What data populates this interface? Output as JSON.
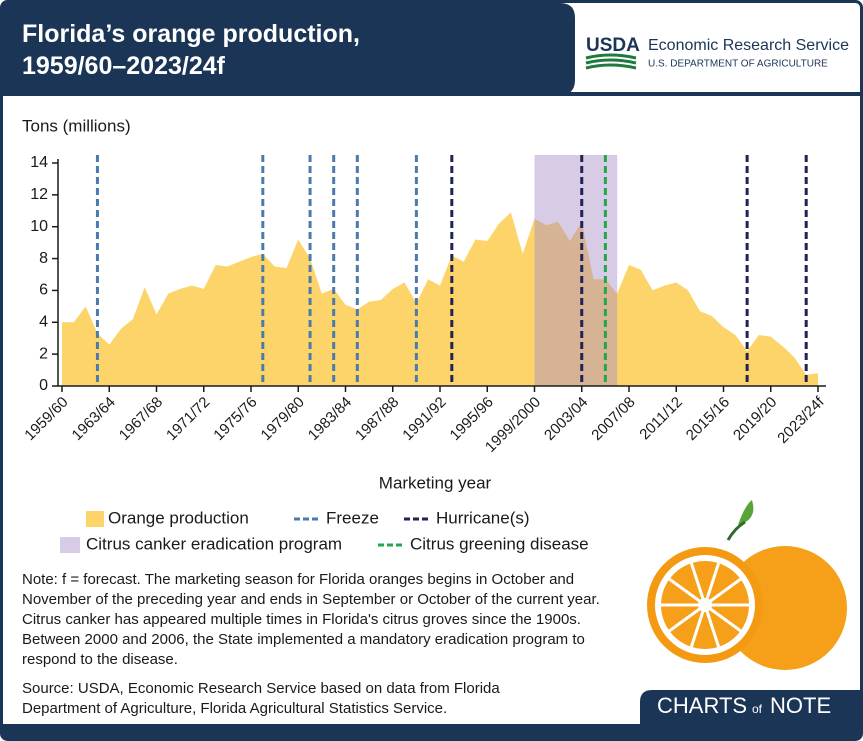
{
  "header": {
    "title": "Florida’s orange production,\n1959/60–2023/24f",
    "logo_acronym": "USDA",
    "logo_agency": "Economic Research Service",
    "logo_department": "U.S. DEPARTMENT OF AGRICULTURE"
  },
  "chart_data": {
    "type": "area",
    "y_label": "Tons (millions)",
    "x_label": "Marketing year",
    "x": [
      1959,
      1960,
      1961,
      1962,
      1963,
      1964,
      1965,
      1966,
      1967,
      1968,
      1969,
      1970,
      1971,
      1972,
      1973,
      1974,
      1975,
      1976,
      1977,
      1978,
      1979,
      1980,
      1981,
      1982,
      1983,
      1984,
      1985,
      1986,
      1987,
      1988,
      1989,
      1990,
      1991,
      1992,
      1993,
      1994,
      1995,
      1996,
      1997,
      1998,
      1999,
      2000,
      2001,
      2002,
      2003,
      2004,
      2005,
      2006,
      2007,
      2008,
      2009,
      2010,
      2011,
      2012,
      2013,
      2014,
      2015,
      2016,
      2017,
      2018,
      2019,
      2020,
      2021,
      2022,
      2023
    ],
    "xlim": [
      1959,
      2023
    ],
    "xticks": [
      {
        "value": 1959,
        "label": "1959/60"
      },
      {
        "value": 1963,
        "label": "1963/64"
      },
      {
        "value": 1967,
        "label": "1967/68"
      },
      {
        "value": 1971,
        "label": "1971/72"
      },
      {
        "value": 1975,
        "label": "1975/76"
      },
      {
        "value": 1979,
        "label": "1979/80"
      },
      {
        "value": 1983,
        "label": "1983/84"
      },
      {
        "value": 1987,
        "label": "1987/88"
      },
      {
        "value": 1991,
        "label": "1991/92"
      },
      {
        "value": 1995,
        "label": "1995/96"
      },
      {
        "value": 1999,
        "label": "1999/2000"
      },
      {
        "value": 2003,
        "label": "2003/04"
      },
      {
        "value": 2007,
        "label": "2007/08"
      },
      {
        "value": 2011,
        "label": "2011/12"
      },
      {
        "value": 2015,
        "label": "2015/16"
      },
      {
        "value": 2019,
        "label": "2019/20"
      },
      {
        "value": 2023,
        "label": "2023/24f"
      }
    ],
    "ylim": [
      0,
      14
    ],
    "yticks": [
      0,
      2,
      4,
      6,
      8,
      10,
      12,
      14
    ],
    "series": [
      {
        "name": "Orange production",
        "color": "#fcd46a",
        "values": [
          4.0,
          4.0,
          5.0,
          3.3,
          2.6,
          3.6,
          4.2,
          6.2,
          4.5,
          5.8,
          6.1,
          6.3,
          6.1,
          7.6,
          7.5,
          7.8,
          8.1,
          8.3,
          7.5,
          7.4,
          9.2,
          8.0,
          5.8,
          6.1,
          5.1,
          4.8,
          5.3,
          5.4,
          6.1,
          6.5,
          5.2,
          6.7,
          6.3,
          8.2,
          7.8,
          9.2,
          9.1,
          10.2,
          10.9,
          8.3,
          10.5,
          10.1,
          10.3,
          9.1,
          10.3,
          6.7,
          6.7,
          5.8,
          7.6,
          7.3,
          6.0,
          6.3,
          6.5,
          6.0,
          4.7,
          4.4,
          3.7,
          3.2,
          2.2,
          3.2,
          3.1,
          2.5,
          1.8,
          0.7,
          0.8
        ]
      }
    ],
    "events": [
      {
        "name": "Freeze",
        "color": "#4a7bab",
        "x": [
          1962,
          1976,
          1980,
          1982,
          1984,
          1989
        ]
      },
      {
        "name": "Hurricane(s)",
        "color": "#1f2356",
        "x": [
          1992,
          2003,
          2017,
          2022
        ]
      },
      {
        "name": "Citrus greening disease",
        "color": "#1fa84a",
        "x": [
          2005
        ]
      }
    ],
    "spans": [
      {
        "name": "Citrus canker eradication program",
        "color": "#a88bc7",
        "x": [
          1999,
          2006
        ]
      }
    ]
  },
  "note": "Note: f = forecast. The marketing season for Florida oranges begins in October and November of the preceding year and ends in September or October of the current year. Citrus canker has appeared multiple times in Florida's citrus groves since the 1900s. Between 2000 and 2006, the State implemented a mandatory eradication program to respond to the disease.",
  "source": "Source: USDA, Economic Research Service based on data from Florida Department of Agriculture, Florida Agricultural Statistics Service.",
  "footer": {
    "logo_charts": "CHARTS",
    "logo_of": "of",
    "logo_note": "NOTE"
  }
}
